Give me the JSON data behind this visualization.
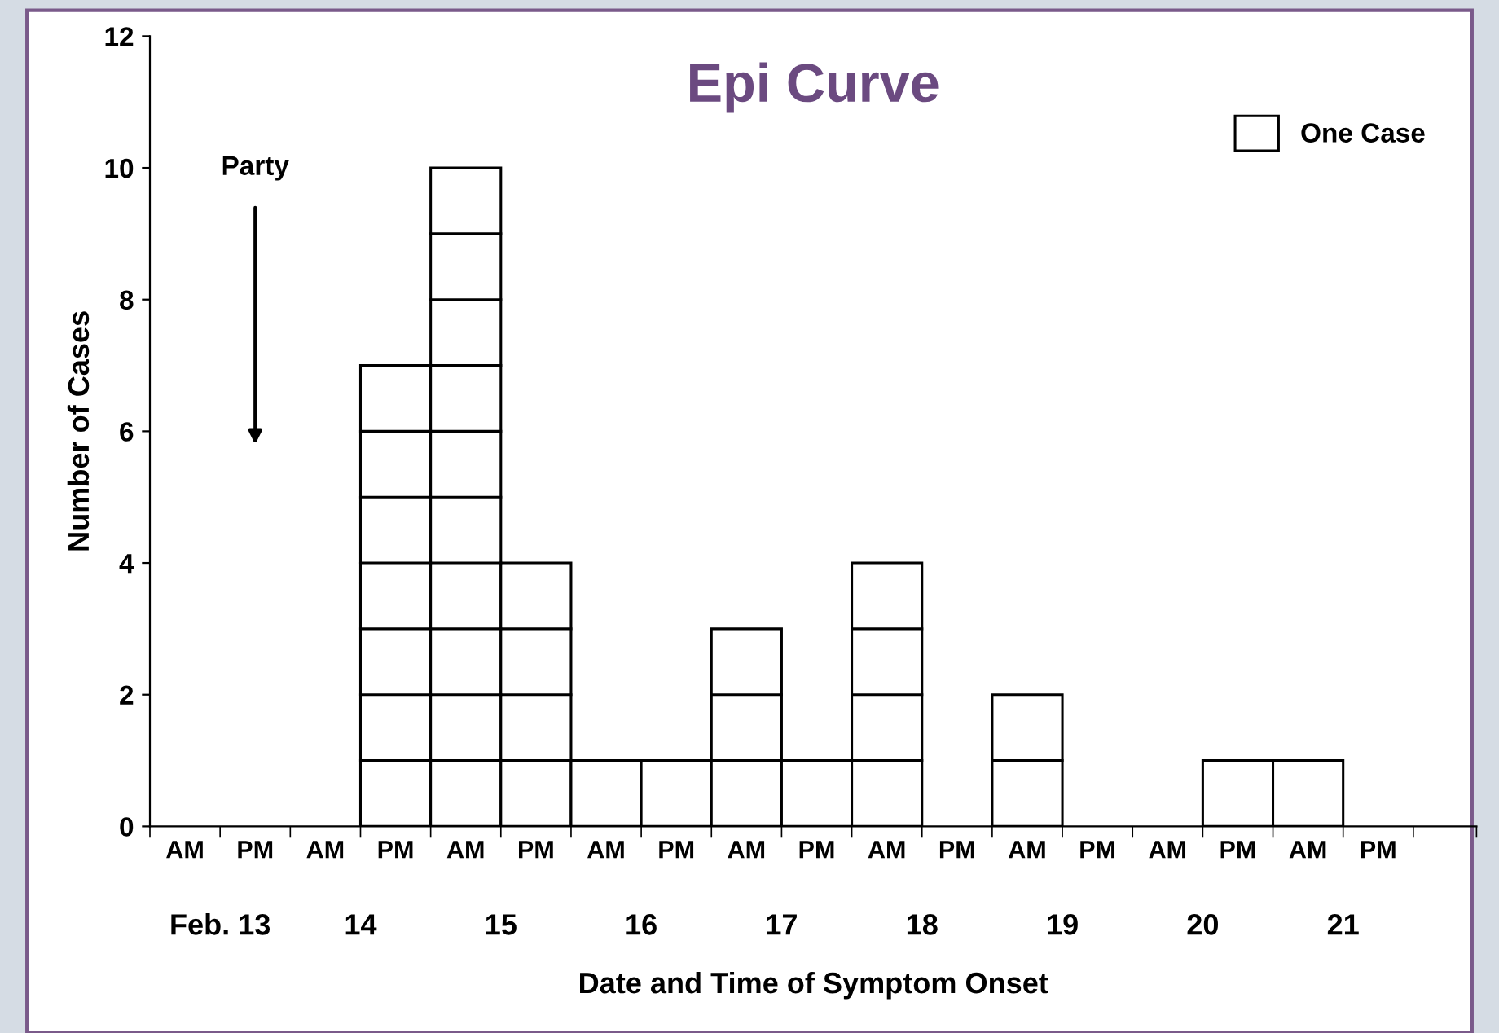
{
  "chart_data": {
    "type": "bar",
    "title": "Epi Curve",
    "xlabel": "Date and Time of Symptom Onset",
    "ylabel": "Number of Cases",
    "categories": [
      "AM",
      "PM",
      "AM",
      "PM",
      "AM",
      "PM",
      "AM",
      "PM",
      "AM",
      "PM",
      "AM",
      "PM",
      "AM",
      "PM",
      "AM",
      "PM",
      "AM",
      "PM"
    ],
    "series": [
      {
        "name": "One Case",
        "color": "#ffffff",
        "values": [
          0,
          0,
          0,
          7,
          10,
          4,
          1,
          1,
          3,
          1,
          4,
          0,
          2,
          0,
          0,
          1,
          1,
          0
        ]
      }
    ],
    "annotations": [
      "Party",
      "Feb. 13",
      "14",
      "15",
      "16",
      "17",
      "18",
      "19",
      "20",
      "21"
    ],
    "ylim": [
      0,
      12
    ],
    "yticks": [
      0,
      2,
      4,
      6,
      8,
      10,
      12
    ],
    "grid": false,
    "legend": "top right"
  }
}
